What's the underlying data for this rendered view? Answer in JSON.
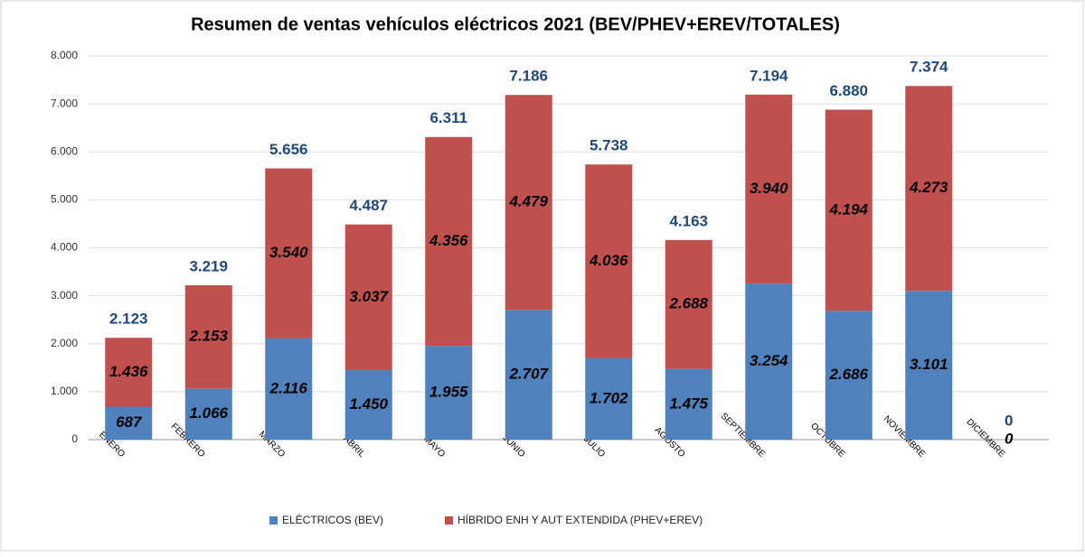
{
  "chart_data": {
    "type": "stacked_bar",
    "title": "Resumen de ventas vehículos eléctricos 2021 (BEV/PHEV+EREV/TOTALES)",
    "categories": [
      "ENERO",
      "FEBRERO",
      "MARZO",
      "ABRIL",
      "MAYO",
      "JUNIO",
      "JULIO",
      "AGOSTO",
      "SEPTIEMBRE",
      "OCTUBRE",
      "NOVIEMBRE",
      "DICIEMBRE"
    ],
    "series": [
      {
        "name": "ELÉCTRICOS (BEV)",
        "color": "#4f81bd",
        "values": [
          687,
          1066,
          2116,
          1450,
          1955,
          2707,
          1702,
          1475,
          3254,
          2686,
          3101,
          0
        ],
        "value_labels": [
          "687",
          "1.066",
          "2.116",
          "1.450",
          "1.955",
          "2.707",
          "1.702",
          "1.475",
          "3.254",
          "2.686",
          "3.101",
          "0"
        ]
      },
      {
        "name": "HÍBRIDO ENH Y AUT EXTENDIDA (PHEV+EREV)",
        "color": "#c0504d",
        "values": [
          1436,
          2153,
          3540,
          3037,
          4356,
          4479,
          4036,
          2688,
          3940,
          4194,
          4273,
          0
        ],
        "value_labels": [
          "1.436",
          "2.153",
          "3.540",
          "3.037",
          "4.356",
          "4.479",
          "4.036",
          "2.688",
          "3.940",
          "4.194",
          "4.273",
          null
        ]
      }
    ],
    "totals": {
      "values": [
        2123,
        3219,
        5656,
        4487,
        6311,
        7186,
        5738,
        4163,
        7194,
        6880,
        7374,
        0
      ],
      "value_labels": [
        "2.123",
        "3.219",
        "5.656",
        "4.487",
        "6.311",
        "7.186",
        "5.738",
        "4.163",
        "7.194",
        "6.880",
        "7.374",
        "0"
      ]
    },
    "ylim": [
      0,
      8000
    ],
    "yticks": [
      0,
      {
        "value": 1000,
        "label": "1.000"
      },
      {
        "value": 2000,
        "label": "2.000"
      },
      {
        "value": 3000,
        "label": "3.000"
      },
      {
        "value": 4000,
        "label": "4.000"
      },
      {
        "value": 5000,
        "label": "5.000"
      },
      {
        "value": 6000,
        "label": "6.000"
      },
      {
        "value": 7000,
        "label": "7.000"
      },
      {
        "value": 8000,
        "label": "8.000"
      }
    ],
    "grid": true,
    "legend": "bottom"
  }
}
